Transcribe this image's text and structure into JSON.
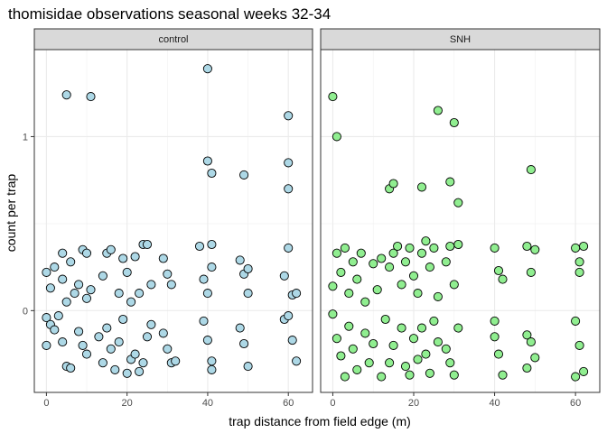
{
  "chart_data": {
    "type": "scatter",
    "title": "thomisidae observations seasonal weeks 32-34",
    "xlabel": "trap distance from field edge (m)",
    "ylabel": "count per trap",
    "xlim": [
      -3,
      66
    ],
    "ylim": [
      -0.47,
      1.5
    ],
    "x_ticks": [
      0,
      20,
      40,
      60
    ],
    "y_ticks": [
      0,
      1
    ],
    "grid": true,
    "legend": "none",
    "panels": [
      {
        "name": "control",
        "color": "#add8e6",
        "points": [
          [
            5,
            1.24
          ],
          [
            11,
            1.23
          ],
          [
            40,
            1.39
          ],
          [
            40,
            0.86
          ],
          [
            41,
            0.79
          ],
          [
            49,
            0.78
          ],
          [
            60,
            0.85
          ],
          [
            60,
            0.7
          ],
          [
            60,
            1.12
          ],
          [
            0,
            0.22
          ],
          [
            1,
            0.13
          ],
          [
            2,
            0.25
          ],
          [
            4,
            0.33
          ],
          [
            4,
            0.18
          ],
          [
            5,
            0.05
          ],
          [
            6,
            0.28
          ],
          [
            7,
            0.1
          ],
          [
            8,
            0.15
          ],
          [
            9,
            0.35
          ],
          [
            10,
            0.33
          ],
          [
            10,
            0.07
          ],
          [
            11,
            0.12
          ],
          [
            14,
            0.2
          ],
          [
            15,
            0.33
          ],
          [
            16,
            0.35
          ],
          [
            18,
            0.1
          ],
          [
            19,
            0.3
          ],
          [
            20,
            0.22
          ],
          [
            21,
            0.05
          ],
          [
            22,
            0.31
          ],
          [
            23,
            0.1
          ],
          [
            24,
            0.38
          ],
          [
            25,
            0.38
          ],
          [
            26,
            0.15
          ],
          [
            29,
            0.3
          ],
          [
            30,
            0.21
          ],
          [
            31,
            0.15
          ],
          [
            38,
            0.37
          ],
          [
            39,
            0.18
          ],
          [
            40,
            0.1
          ],
          [
            41,
            0.25
          ],
          [
            41,
            0.38
          ],
          [
            48,
            0.29
          ],
          [
            49,
            0.21
          ],
          [
            50,
            0.1
          ],
          [
            50,
            0.24
          ],
          [
            59,
            0.2
          ],
          [
            60,
            0.36
          ],
          [
            61,
            0.09
          ],
          [
            62,
            0.1
          ],
          [
            0,
            -0.04
          ],
          [
            1,
            -0.08
          ],
          [
            2,
            -0.11
          ],
          [
            3,
            -0.03
          ],
          [
            4,
            -0.18
          ],
          [
            5,
            -0.32
          ],
          [
            6,
            -0.33
          ],
          [
            8,
            -0.12
          ],
          [
            9,
            -0.2
          ],
          [
            10,
            -0.25
          ],
          [
            13,
            -0.15
          ],
          [
            14,
            -0.3
          ],
          [
            15,
            -0.1
          ],
          [
            16,
            -0.22
          ],
          [
            17,
            -0.34
          ],
          [
            19,
            -0.05
          ],
          [
            20,
            -0.36
          ],
          [
            21,
            -0.28
          ],
          [
            22,
            -0.25
          ],
          [
            23,
            -0.35
          ],
          [
            24,
            -0.3
          ],
          [
            25,
            -0.15
          ],
          [
            26,
            -0.08
          ],
          [
            29,
            -0.13
          ],
          [
            30,
            -0.22
          ],
          [
            31,
            -0.3
          ],
          [
            32,
            -0.29
          ],
          [
            39,
            -0.06
          ],
          [
            40,
            -0.17
          ],
          [
            41,
            -0.29
          ],
          [
            41,
            -0.34
          ],
          [
            48,
            -0.1
          ],
          [
            49,
            -0.19
          ],
          [
            50,
            -0.32
          ],
          [
            59,
            -0.05
          ],
          [
            60,
            -0.03
          ],
          [
            61,
            -0.17
          ],
          [
            62,
            -0.29
          ],
          [
            0,
            -0.2
          ],
          [
            18,
            -0.18
          ]
        ]
      },
      {
        "name": "SNH",
        "color": "#90ee90",
        "points": [
          [
            0,
            1.23
          ],
          [
            1,
            1.0
          ],
          [
            14,
            0.7
          ],
          [
            15,
            0.73
          ],
          [
            22,
            0.71
          ],
          [
            26,
            1.15
          ],
          [
            29,
            0.74
          ],
          [
            30,
            1.08
          ],
          [
            31,
            0.62
          ],
          [
            49,
            0.81
          ],
          [
            0,
            0.14
          ],
          [
            1,
            0.33
          ],
          [
            2,
            0.22
          ],
          [
            3,
            0.36
          ],
          [
            4,
            0.1
          ],
          [
            5,
            0.28
          ],
          [
            6,
            0.18
          ],
          [
            7,
            0.33
          ],
          [
            8,
            0.05
          ],
          [
            10,
            0.27
          ],
          [
            11,
            0.12
          ],
          [
            12,
            0.3
          ],
          [
            14,
            0.25
          ],
          [
            15,
            0.33
          ],
          [
            16,
            0.37
          ],
          [
            17,
            0.15
          ],
          [
            18,
            0.28
          ],
          [
            19,
            0.36
          ],
          [
            20,
            0.2
          ],
          [
            21,
            0.1
          ],
          [
            22,
            0.33
          ],
          [
            23,
            0.4
          ],
          [
            24,
            0.25
          ],
          [
            25,
            0.36
          ],
          [
            26,
            0.08
          ],
          [
            28,
            0.28
          ],
          [
            29,
            0.37
          ],
          [
            30,
            0.15
          ],
          [
            31,
            0.38
          ],
          [
            40,
            0.36
          ],
          [
            41,
            0.23
          ],
          [
            42,
            0.18
          ],
          [
            48,
            0.37
          ],
          [
            49,
            0.22
          ],
          [
            50,
            0.35
          ],
          [
            60,
            0.36
          ],
          [
            61,
            0.28
          ],
          [
            62,
            0.37
          ],
          [
            61,
            0.22
          ],
          [
            0,
            -0.02
          ],
          [
            1,
            -0.16
          ],
          [
            2,
            -0.26
          ],
          [
            3,
            -0.38
          ],
          [
            4,
            -0.09
          ],
          [
            5,
            -0.22
          ],
          [
            6,
            -0.34
          ],
          [
            8,
            -0.13
          ],
          [
            9,
            -0.3
          ],
          [
            10,
            -0.19
          ],
          [
            12,
            -0.38
          ],
          [
            13,
            -0.05
          ],
          [
            14,
            -0.3
          ],
          [
            15,
            -0.2
          ],
          [
            17,
            -0.1
          ],
          [
            18,
            -0.32
          ],
          [
            19,
            -0.37
          ],
          [
            20,
            -0.16
          ],
          [
            21,
            -0.28
          ],
          [
            22,
            -0.1
          ],
          [
            23,
            -0.25
          ],
          [
            24,
            -0.36
          ],
          [
            25,
            -0.06
          ],
          [
            26,
            -0.18
          ],
          [
            28,
            -0.22
          ],
          [
            29,
            -0.3
          ],
          [
            30,
            -0.37
          ],
          [
            31,
            -0.1
          ],
          [
            40,
            -0.06
          ],
          [
            40,
            -0.15
          ],
          [
            41,
            -0.25
          ],
          [
            42,
            -0.37
          ],
          [
            48,
            -0.14
          ],
          [
            48,
            -0.33
          ],
          [
            49,
            -0.18
          ],
          [
            50,
            -0.27
          ],
          [
            60,
            -0.06
          ],
          [
            61,
            -0.2
          ],
          [
            62,
            -0.35
          ],
          [
            60,
            -0.38
          ]
        ]
      }
    ]
  }
}
